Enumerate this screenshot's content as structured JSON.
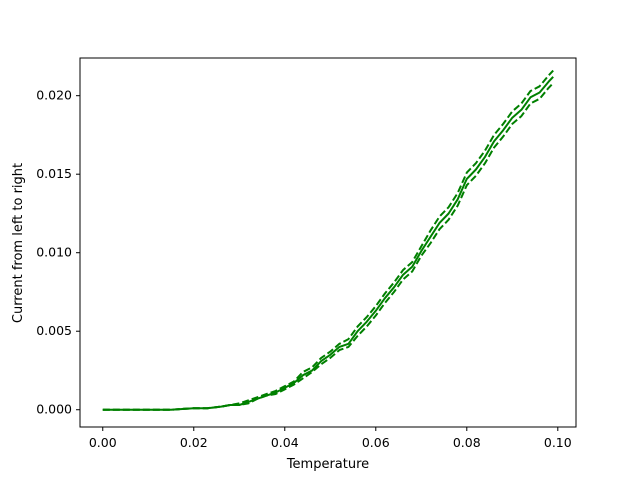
{
  "chart_data": {
    "type": "line",
    "title": "",
    "xlabel": "Temperature",
    "ylabel": "Current from left to right",
    "xlim": [
      -0.005,
      0.104
    ],
    "ylim": [
      -0.0011,
      0.0224
    ],
    "xticks": [
      0.0,
      0.02,
      0.04,
      0.06,
      0.08,
      0.1
    ],
    "xtick_labels": [
      "0.00",
      "0.02",
      "0.04",
      "0.06",
      "0.08",
      "0.10"
    ],
    "yticks": [
      0.0,
      0.005,
      0.01,
      0.015,
      0.02
    ],
    "ytick_labels": [
      "0.000",
      "0.005",
      "0.010",
      "0.015",
      "0.020"
    ],
    "grid": false,
    "legend": "none",
    "color": "#008000",
    "x": [
      0.0,
      0.005,
      0.01,
      0.015,
      0.02,
      0.023,
      0.026,
      0.028,
      0.03,
      0.032,
      0.034,
      0.036,
      0.038,
      0.04,
      0.042,
      0.044,
      0.046,
      0.048,
      0.05,
      0.052,
      0.054,
      0.056,
      0.058,
      0.06,
      0.062,
      0.064,
      0.066,
      0.068,
      0.07,
      0.072,
      0.074,
      0.076,
      0.078,
      0.08,
      0.082,
      0.084,
      0.086,
      0.088,
      0.09,
      0.092,
      0.094,
      0.096,
      0.098,
      0.099
    ],
    "series": [
      {
        "style": "dashed",
        "values": [
          0.0,
          0.0,
          0.0,
          0.0,
          0.0001,
          0.0001,
          0.0002,
          0.0003,
          0.0003,
          0.0004,
          0.0007,
          0.0009,
          0.001,
          0.0013,
          0.0016,
          0.002,
          0.0024,
          0.0029,
          0.0033,
          0.0038,
          0.004,
          0.0047,
          0.0053,
          0.006,
          0.0068,
          0.0075,
          0.0083,
          0.0088,
          0.0098,
          0.0106,
          0.0115,
          0.0121,
          0.013,
          0.0143,
          0.0149,
          0.0157,
          0.0167,
          0.0174,
          0.0182,
          0.0187,
          0.0195,
          0.0198,
          0.0205,
          0.0208
        ]
      },
      {
        "style": "solid",
        "values": [
          0.0,
          0.0,
          0.0,
          0.0,
          0.0001,
          0.0001,
          0.0002,
          0.0003,
          0.0003,
          0.0005,
          0.0007,
          0.0009,
          0.0011,
          0.0014,
          0.0017,
          0.0022,
          0.0025,
          0.0031,
          0.0035,
          0.004,
          0.0042,
          0.005,
          0.0056,
          0.0063,
          0.0071,
          0.0078,
          0.0086,
          0.0091,
          0.0101,
          0.011,
          0.0119,
          0.0125,
          0.0134,
          0.0147,
          0.0153,
          0.0161,
          0.0171,
          0.0178,
          0.0186,
          0.0191,
          0.0199,
          0.0202,
          0.0209,
          0.0212
        ]
      },
      {
        "style": "dashed",
        "values": [
          0.0,
          0.0,
          0.0,
          0.0,
          0.0001,
          0.0001,
          0.0002,
          0.0003,
          0.0004,
          0.0006,
          0.0008,
          0.001,
          0.0012,
          0.0015,
          0.0018,
          0.0024,
          0.0027,
          0.0033,
          0.0037,
          0.0042,
          0.0045,
          0.0053,
          0.0059,
          0.0066,
          0.0074,
          0.0081,
          0.0089,
          0.0094,
          0.0104,
          0.0114,
          0.0123,
          0.0129,
          0.0138,
          0.0151,
          0.0157,
          0.0165,
          0.0175,
          0.0182,
          0.019,
          0.0195,
          0.0203,
          0.0206,
          0.0213,
          0.0216
        ]
      }
    ]
  }
}
